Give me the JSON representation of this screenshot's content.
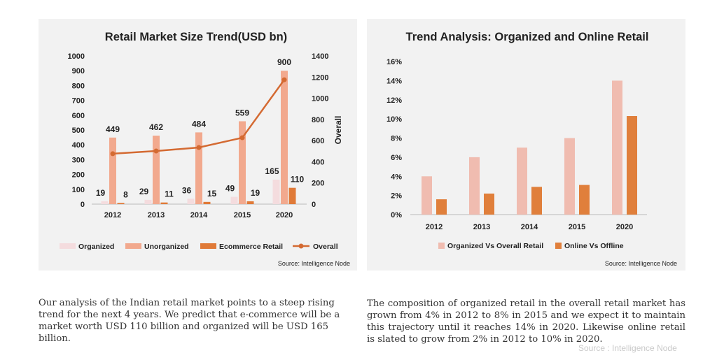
{
  "colors": {
    "organized": "#f4dcde",
    "unorganized": "#f2a98e",
    "ecommerce": "#e07a38",
    "overall": "#d46a32",
    "organized_share": "#f0bcb0",
    "online_share": "#e07f3b",
    "panel_bg": "#f2f2f2"
  },
  "chart_data": [
    {
      "type": "bar",
      "title": "Retail Market Size Trend(USD bn)",
      "categories": [
        "2012",
        "2013",
        "2014",
        "2015",
        "2020"
      ],
      "ylim": [
        0,
        1000
      ],
      "yticks": [
        "0",
        "100",
        "200",
        "300",
        "400",
        "500",
        "600",
        "700",
        "800",
        "900",
        "1000"
      ],
      "y2label": "Overall",
      "y2lim": [
        0,
        1400
      ],
      "y2ticks": [
        "0",
        "200",
        "400",
        "600",
        "800",
        "1000",
        "1200",
        "1400"
      ],
      "series": [
        {
          "name": "Organized",
          "values": [
            19,
            29,
            36,
            49,
            165
          ],
          "labels": [
            "19",
            "29",
            "36",
            "49",
            "165"
          ]
        },
        {
          "name": "Unorganized",
          "values": [
            449,
            462,
            484,
            559,
            900
          ],
          "labels": [
            "449",
            "462",
            "484",
            "559",
            "900"
          ]
        },
        {
          "name": "Ecommerce Retail",
          "values": [
            8,
            11,
            15,
            19,
            110
          ],
          "labels": [
            "8",
            "11",
            "15",
            "19",
            "110"
          ]
        },
        {
          "name": "Overall",
          "type": "line",
          "axis": "secondary",
          "values": [
            476,
            502,
            535,
            627,
            1175
          ]
        }
      ],
      "legend_position": "bottom",
      "source": "Source: Intelligence Node"
    },
    {
      "type": "bar",
      "title": "Trend Analysis: Organized and Online Retail",
      "categories": [
        "2012",
        "2013",
        "2014",
        "2015",
        "2020"
      ],
      "ylim": [
        0,
        16
      ],
      "yticks": [
        "0%",
        "2%",
        "4%",
        "6%",
        "8%",
        "10%",
        "12%",
        "14%",
        "16%"
      ],
      "series": [
        {
          "name": "Organized Vs Overall Retail",
          "values": [
            4,
            6,
            7,
            8,
            14
          ]
        },
        {
          "name": "Online Vs Offline",
          "values": [
            1.6,
            2.2,
            2.9,
            3.1,
            10.3
          ]
        }
      ],
      "legend_position": "bottom",
      "source": "Source: Intelligence Node"
    }
  ],
  "text": {
    "left_paragraph": "Our analysis of the Indian retail market points to a steep rising trend for the next 4 years. We predict that e-commerce will be a market worth USD 110 billion and organized will be USD 165 billion.",
    "right_paragraph": "The composition of organized retail in the overall retail market has grown from 4% in 2012 to 8% in 2015 and we expect it to maintain this trajectory until it reaches 14% in 2020. Likewise online retail is slated to grow from 2% in 2012 to 10% in 2020.",
    "watermark": "Source : Intelligence Node"
  }
}
